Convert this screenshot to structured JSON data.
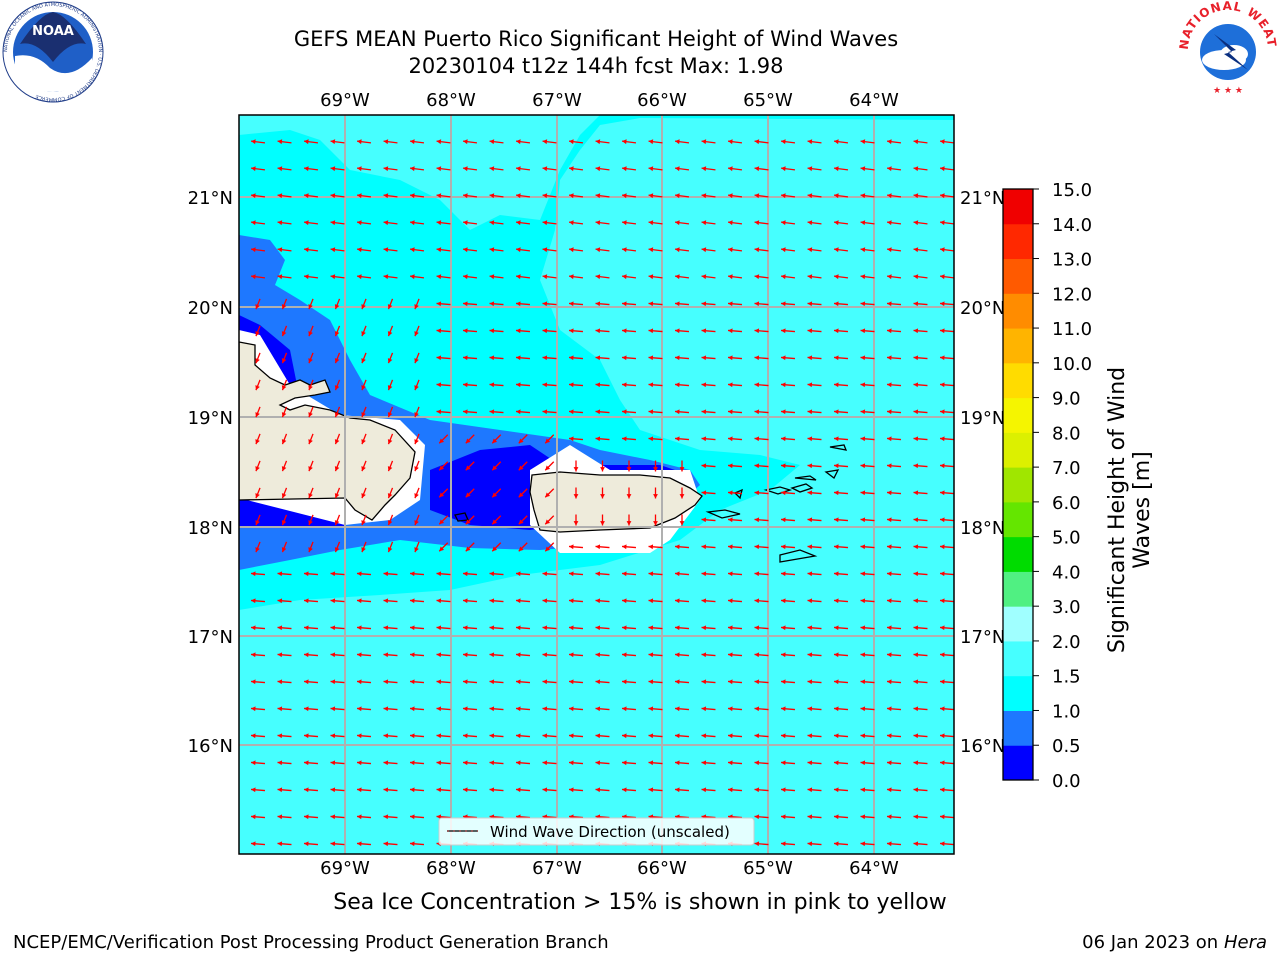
{
  "title": {
    "line1": "GEFS MEAN Puerto Rico Significant Height of Wind Waves",
    "line2": "20230104 t12z 144h fcst   Max: 1.98"
  },
  "map": {
    "lon_ticks": [
      "69°W",
      "68°W",
      "67°W",
      "66°W",
      "65°W",
      "64°W"
    ],
    "lat_ticks": [
      "21°N",
      "20°N",
      "19°N",
      "18°N",
      "17°N",
      "16°N"
    ],
    "legend_label": "Wind Wave Direction (unscaled)",
    "arrow_color": "#ff0000",
    "land_color": "#eeebdb"
  },
  "colorbar": {
    "title": "Significant Height of Wind Waves [m]",
    "ticks": [
      "0.0",
      "0.5",
      "1.0",
      "1.5",
      "2.0",
      "3.0",
      "4.0",
      "5.0",
      "6.0",
      "7.0",
      "8.0",
      "9.0",
      "10.0",
      "11.0",
      "12.0",
      "13.0",
      "14.0",
      "15.0"
    ],
    "colors": [
      "#0000ff",
      "#1e78ff",
      "#00ffff",
      "#46ffff",
      "#a0ffff",
      "#50f082",
      "#00dc00",
      "#64e600",
      "#a0e600",
      "#dcf000",
      "#f5f500",
      "#ffdc00",
      "#ffb400",
      "#ff8c00",
      "#ff5a00",
      "#ff2800",
      "#f00000"
    ]
  },
  "subtitle": "Sea Ice Concentration > 15% is shown in pink to yellow",
  "footer": {
    "left": "NCEP/EMC/Verification Post Processing Product Generation Branch",
    "date": "06 Jan 2023 on ",
    "machine": "Hera"
  },
  "logos": {
    "noaa": "NOAA",
    "noaa_ring": "NATIONAL OCEANIC AND ATMOSPHERIC ADMINISTRATION · U.S. DEPARTMENT OF COMMERCE",
    "nws_ring": "NATIONAL WEATHER SERVICE"
  }
}
